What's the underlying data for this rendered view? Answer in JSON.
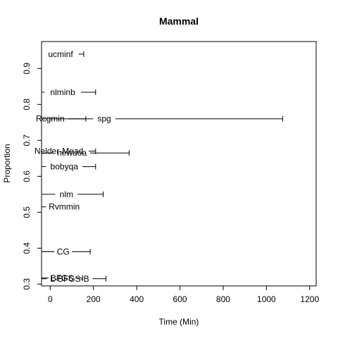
{
  "chart_data": {
    "type": "scatter",
    "title": "Mammal",
    "xlabel": "Time (Min)",
    "ylabel": "Proportion",
    "xlim": [
      -40,
      1230
    ],
    "ylim": [
      0.295,
      0.975
    ],
    "x_ticks": [
      0,
      200,
      400,
      600,
      800,
      1000,
      1200
    ],
    "y_ticks": [
      0.3,
      0.4,
      0.5,
      0.6,
      0.7,
      0.8,
      0.9
    ],
    "grid": false,
    "legend": "none",
    "points": [
      {
        "label": "ucminf",
        "y": 0.94,
        "x_min": -40,
        "x_max": 155,
        "label_x": 48
      },
      {
        "label": "nlminb",
        "y": 0.834,
        "x_min": -40,
        "x_max": 210,
        "label_x": 58
      },
      {
        "label": "Rcgmin",
        "y": 0.76,
        "x_min": -40,
        "x_max": 165,
        "label_x": 0
      },
      {
        "label": "spg",
        "y": 0.76,
        "x_min": -40,
        "x_max": 1075,
        "label_x": 250
      },
      {
        "label": "Nelder-Mead",
        "y": 0.67,
        "x_min": -40,
        "x_max": 210,
        "label_x": 40
      },
      {
        "label": "newuoa",
        "y": 0.665,
        "x_min": -40,
        "x_max": 365,
        "label_x": 100
      },
      {
        "label": "bobyqa",
        "y": 0.627,
        "x_min": -40,
        "x_max": 210,
        "label_x": 65
      },
      {
        "label": "nlm",
        "y": 0.55,
        "x_min": -40,
        "x_max": 245,
        "label_x": 75
      },
      {
        "label": "Rvmmin",
        "y": 0.515,
        "x_min": -40,
        "x_max": -40,
        "label_x": 65
      },
      {
        "label": "CG",
        "y": 0.39,
        "x_min": -40,
        "x_max": 185,
        "label_x": 60
      },
      {
        "label": "BFGS",
        "y": 0.317,
        "x_min": -40,
        "x_max": 150,
        "label_x": 55
      },
      {
        "label": "L-BFGS-B",
        "y": 0.315,
        "x_min": -40,
        "x_max": 258,
        "label_x": 90
      }
    ]
  }
}
